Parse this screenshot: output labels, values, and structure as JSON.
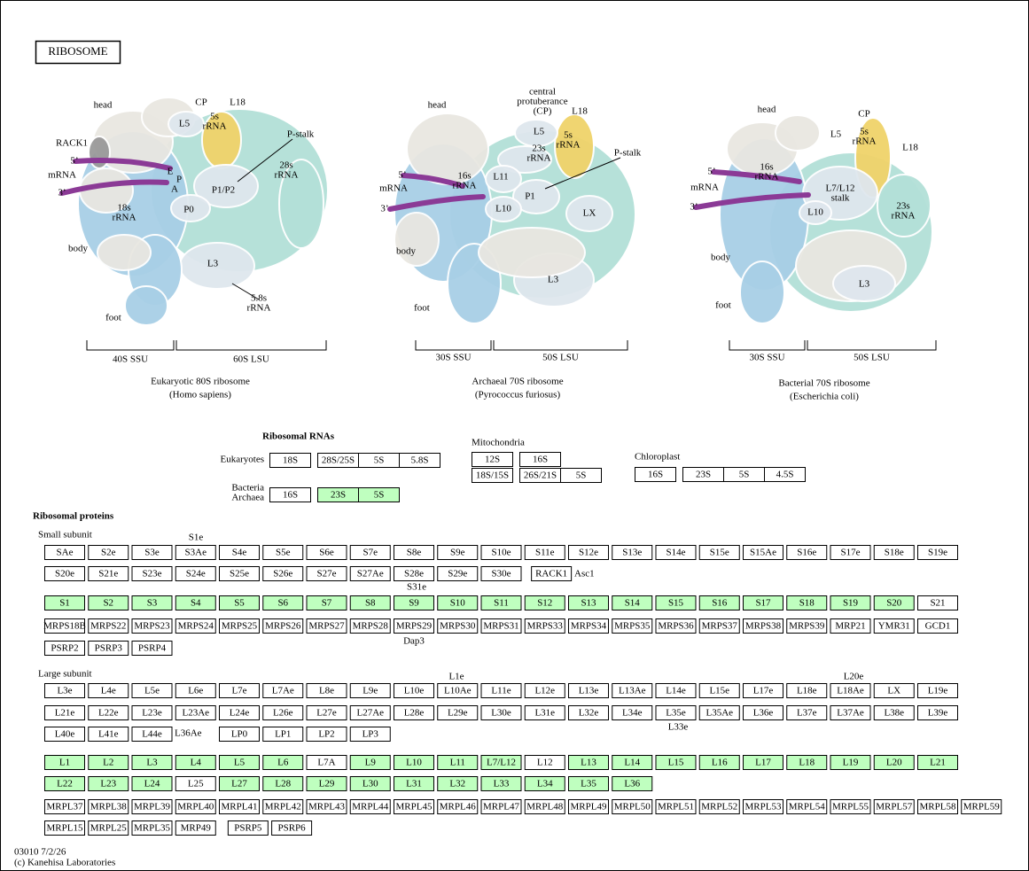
{
  "title": "RIBOSOME",
  "highlight_color": "#bfffbf",
  "ribosomes": [
    {
      "labels": [
        [
          "head"
        ],
        [
          "CP"
        ],
        [
          "L18"
        ],
        [
          "L5"
        ],
        [
          "5s",
          "rRNA"
        ],
        [
          "RACK1"
        ],
        [
          "5’"
        ],
        [
          "mRNA"
        ],
        [
          "3’"
        ],
        [
          "E"
        ],
        [
          "P"
        ],
        [
          "A"
        ],
        [
          "P1/P2"
        ],
        [
          "P-stalk"
        ],
        [
          "28s",
          "rRNA"
        ],
        [
          "18s",
          "rRNA"
        ],
        [
          "P0"
        ],
        [
          "body"
        ],
        [
          "L3"
        ],
        [
          "5.8s",
          "rRNA"
        ],
        [
          "foot"
        ]
      ],
      "ssu": "40S SSU",
      "lsu": "60S LSU",
      "caption": [
        "Eukaryotic 80S ribosome",
        "(Homo sapiens)"
      ]
    },
    {
      "labels": [
        [
          "head"
        ],
        [
          "central",
          "protuberance",
          "(CP)"
        ],
        [
          "L18"
        ],
        [
          "L5"
        ],
        [
          "5s",
          "rRNA"
        ],
        [
          "23s",
          "rRNA"
        ],
        [
          "P-stalk"
        ],
        [
          "5’"
        ],
        [
          "mRNA"
        ],
        [
          "3’"
        ],
        [
          "16s",
          "rRNA"
        ],
        [
          "L11"
        ],
        [
          "P1"
        ],
        [
          "L10"
        ],
        [
          "LX"
        ],
        [
          "body"
        ],
        [
          "L3"
        ],
        [
          "foot"
        ]
      ],
      "ssu": "30S SSU",
      "lsu": "50S LSU",
      "caption": [
        "Archaeal 70S ribosome",
        "(Pyrococcus furiosus)"
      ]
    },
    {
      "labels": [
        [
          "head"
        ],
        [
          "CP"
        ],
        [
          "5s",
          "rRNA"
        ],
        [
          "L5"
        ],
        [
          "L18"
        ],
        [
          "5’"
        ],
        [
          "mRNA"
        ],
        [
          "3’"
        ],
        [
          "16s",
          "rRNA"
        ],
        [
          "L7/L12",
          "stalk"
        ],
        [
          "L10"
        ],
        [
          "23s",
          "rRNA"
        ],
        [
          "body"
        ],
        [
          "L3"
        ],
        [
          "foot"
        ]
      ],
      "ssu": "30S SSU",
      "lsu": "50S LSU",
      "caption": [
        "Bacterial 70S ribosome",
        "(Escherichia coli)"
      ]
    }
  ],
  "ribosomal_rnas": {
    "title": "Ribosomal RNAs",
    "eukaryotes": {
      "label": [
        "Eukaryotes"
      ],
      "boxes": [
        "18S",
        "28S/25S",
        "5S",
        "5.8S"
      ],
      "highlighted": [
        false,
        false,
        false,
        false
      ]
    },
    "bacteria_archaea": {
      "label": [
        "Bacteria",
        "Archaea"
      ],
      "boxes": [
        "16S",
        "23S",
        "5S"
      ],
      "highlighted": [
        false,
        true,
        true
      ]
    },
    "mitochondria": {
      "label": [
        "Mitochondria"
      ],
      "boxes": [
        "12S",
        "16S",
        "18S/15S",
        "26S/21S",
        "5S"
      ],
      "highlighted": [
        false,
        false,
        false,
        false,
        false
      ]
    },
    "chloroplast": {
      "label": [
        "Chloroplast"
      ],
      "boxes": [
        "16S",
        "23S",
        "5S",
        "4.5S"
      ],
      "highlighted": [
        false,
        false,
        false,
        false
      ]
    }
  },
  "ribosomal_proteins": {
    "title": "Ribosomal proteins",
    "small_subunit": {
      "title": "Small subunit",
      "rows": [
        {
          "boxes": [
            "SAe",
            "S2e",
            "S3e",
            "S3Ae",
            "S4e",
            "S5e",
            "S6e",
            "S7e",
            "S8e",
            "S9e",
            "S10e",
            "S11e",
            "S12e",
            "S13e",
            "S14e",
            "S15e",
            "S15Ae",
            "S16e",
            "S17e",
            "S18e",
            "S19e"
          ],
          "highlighted": [
            false,
            false,
            false,
            false,
            false,
            false,
            false,
            false,
            false,
            false,
            false,
            false,
            false,
            false,
            false,
            false,
            false,
            false,
            false,
            false,
            false
          ]
        },
        {
          "boxes": [
            "S20e",
            "S21e",
            "S23e",
            "S24e",
            "S25e",
            "S26e",
            "S27e",
            "S27Ae",
            "S28e",
            "S29e",
            "S30e",
            "RACK1"
          ],
          "highlighted": [
            false,
            false,
            false,
            false,
            false,
            false,
            false,
            false,
            false,
            false,
            false,
            false
          ]
        },
        {
          "boxes": [
            "S1",
            "S2",
            "S3",
            "S4",
            "S5",
            "S6",
            "S7",
            "S8",
            "S9",
            "S10",
            "S11",
            "S12",
            "S13",
            "S14",
            "S15",
            "S16",
            "S17",
            "S18",
            "S19",
            "S20",
            "S21"
          ],
          "highlighted": [
            true,
            true,
            true,
            true,
            true,
            true,
            true,
            true,
            true,
            true,
            true,
            true,
            true,
            true,
            true,
            true,
            true,
            true,
            true,
            true,
            false
          ]
        },
        {
          "boxes": [
            "MRPS18B",
            "MRPS22",
            "MRPS23",
            "MRPS24",
            "MRPS25",
            "MRPS26",
            "MRPS27",
            "MRPS28",
            "MRPS29",
            "MRPS30",
            "MRPS31",
            "MRPS33",
            "MRPS34",
            "MRPS35",
            "MRPS36",
            "MRPS37",
            "MRPS38",
            "MRPS39",
            "MRP21",
            "YMR31",
            "GCD1"
          ],
          "highlighted": [
            false,
            false,
            false,
            false,
            false,
            false,
            false,
            false,
            false,
            false,
            false,
            false,
            false,
            false,
            false,
            false,
            false,
            false,
            false,
            false,
            false
          ]
        },
        {
          "boxes": [
            "PSRP2",
            "PSRP3",
            "PSRP4"
          ],
          "highlighted": [
            false,
            false,
            false
          ]
        }
      ],
      "notes": [
        "S1e",
        "Asc1",
        "S31e",
        "Dap3"
      ]
    },
    "large_subunit": {
      "title": "Large subunit",
      "rows": [
        {
          "boxes": [
            "L3e",
            "L4e",
            "L5e",
            "L6e",
            "L7e",
            "L7Ae",
            "L8e",
            "L9e",
            "L10e",
            "L10Ae",
            "L11e",
            "L12e",
            "L13e",
            "L13Ae",
            "L14e",
            "L15e",
            "L17e",
            "L18e",
            "L18Ae",
            "LX",
            "L19e"
          ],
          "highlighted": [
            false,
            false,
            false,
            false,
            false,
            false,
            false,
            false,
            false,
            false,
            false,
            false,
            false,
            false,
            false,
            false,
            false,
            false,
            false,
            false,
            false
          ]
        },
        {
          "boxes": [
            "L21e",
            "L22e",
            "L23e",
            "L23Ae",
            "L24e",
            "L26e",
            "L27e",
            "L27Ae",
            "L28e",
            "L29e",
            "L30e",
            "L31e",
            "L32e",
            "L34e",
            "L35e",
            "L35Ae",
            "L36e",
            "L37e",
            "L37Ae",
            "L38e",
            "L39e"
          ],
          "highlighted": [
            false,
            false,
            false,
            false,
            false,
            false,
            false,
            false,
            false,
            false,
            false,
            false,
            false,
            false,
            false,
            false,
            false,
            false,
            false,
            false,
            false
          ]
        },
        {
          "boxes": [
            "L40e",
            "L41e",
            "L44e",
            "LP0",
            "LP1",
            "LP2",
            "LP3"
          ],
          "highlighted": [
            false,
            false,
            false,
            false,
            false,
            false,
            false
          ]
        },
        {
          "boxes": [
            "L1",
            "L2",
            "L3",
            "L4",
            "L5",
            "L6",
            "L7A",
            "L9",
            "L10",
            "L11",
            "L7/L12",
            "L12",
            "L13",
            "L14",
            "L15",
            "L16",
            "L17",
            "L18",
            "L19",
            "L20",
            "L21"
          ],
          "highlighted": [
            true,
            true,
            true,
            true,
            true,
            true,
            false,
            true,
            true,
            true,
            true,
            false,
            true,
            true,
            true,
            true,
            true,
            true,
            true,
            true,
            true
          ]
        },
        {
          "boxes": [
            "L22",
            "L23",
            "L24",
            "L25",
            "L27",
            "L28",
            "L29",
            "L30",
            "L31",
            "L32",
            "L33",
            "L34",
            "L35",
            "L36"
          ],
          "highlighted": [
            true,
            true,
            true,
            false,
            true,
            true,
            true,
            true,
            true,
            true,
            true,
            true,
            true,
            true
          ]
        },
        {
          "boxes": [
            "MRPL37",
            "MRPL38",
            "MRPL39",
            "MRPL40",
            "MRPL41",
            "MRPL42",
            "MRPL43",
            "MRPL44",
            "MRPL45",
            "MRPL46",
            "MRPL47",
            "MRPL48",
            "MRPL49",
            "MRPL50",
            "MRPL51",
            "MRPL52",
            "MRPL53",
            "MRPL54",
            "MRPL55",
            "MRPL57",
            "MRPL58",
            "MRPL59"
          ],
          "highlighted": [
            false,
            false,
            false,
            false,
            false,
            false,
            false,
            false,
            false,
            false,
            false,
            false,
            false,
            false,
            false,
            false,
            false,
            false,
            false,
            false,
            false,
            false
          ]
        },
        {
          "boxes": [
            "MRPL15",
            "MRPL25",
            "MRPL35",
            "MRP49",
            "PSRP5",
            "PSRP6"
          ],
          "highlighted": [
            false,
            false,
            false,
            false,
            false,
            false
          ]
        }
      ],
      "notes": [
        "L1e",
        "L20e",
        "L33e",
        "L36Ae"
      ]
    }
  },
  "footer": [
    "03010 7/2/26",
    "(c) Kanehisa Laboratories"
  ]
}
